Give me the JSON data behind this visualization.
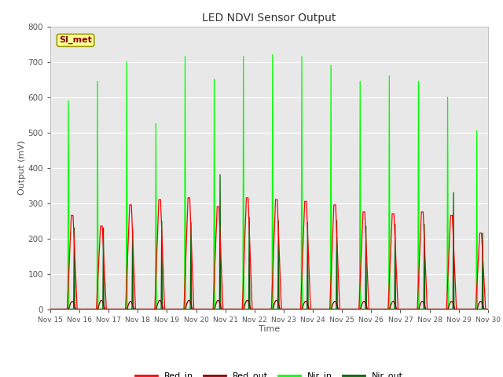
{
  "title": "LED NDVI Sensor Output",
  "xlabel": "Time",
  "ylabel": "Output (mV)",
  "ylim": [
    0,
    800
  ],
  "background_color": "#e8e8e8",
  "annotation_text": "SI_met",
  "annotation_color": "#8b0000",
  "annotation_bg": "#ffff99",
  "annotation_border": "#999900",
  "tick_labels": [
    "Nov 15",
    "Nov 16",
    "Nov 17",
    "Nov 18",
    "Nov 19",
    "Nov 20",
    "Nov 21",
    "Nov 22",
    "Nov 23",
    "Nov 24",
    "Nov 25",
    "Nov 26",
    "Nov 27",
    "Nov 28",
    "Nov 29",
    "Nov 30"
  ],
  "legend_entries": [
    "Red_in",
    "Red_out",
    "Nir_in",
    "Nir_out"
  ],
  "legend_colors": [
    "#ff0000",
    "#8b0000",
    "#00ff00",
    "#006400"
  ],
  "num_cycles": 15,
  "red_in_peaks": [
    265,
    235,
    295,
    310,
    315,
    290,
    315,
    310,
    305,
    295,
    275,
    270,
    275,
    265,
    215
  ],
  "red_out_peaks": [
    22,
    25,
    22,
    25,
    25,
    25,
    25,
    25,
    22,
    22,
    22,
    22,
    22,
    22,
    22
  ],
  "nir_in_peaks": [
    590,
    645,
    700,
    525,
    715,
    650,
    715,
    720,
    715,
    690,
    645,
    660,
    645,
    600,
    505
  ],
  "nir_out_peaks": [
    230,
    230,
    230,
    250,
    245,
    380,
    260,
    250,
    245,
    250,
    235,
    240,
    240,
    330,
    215
  ]
}
